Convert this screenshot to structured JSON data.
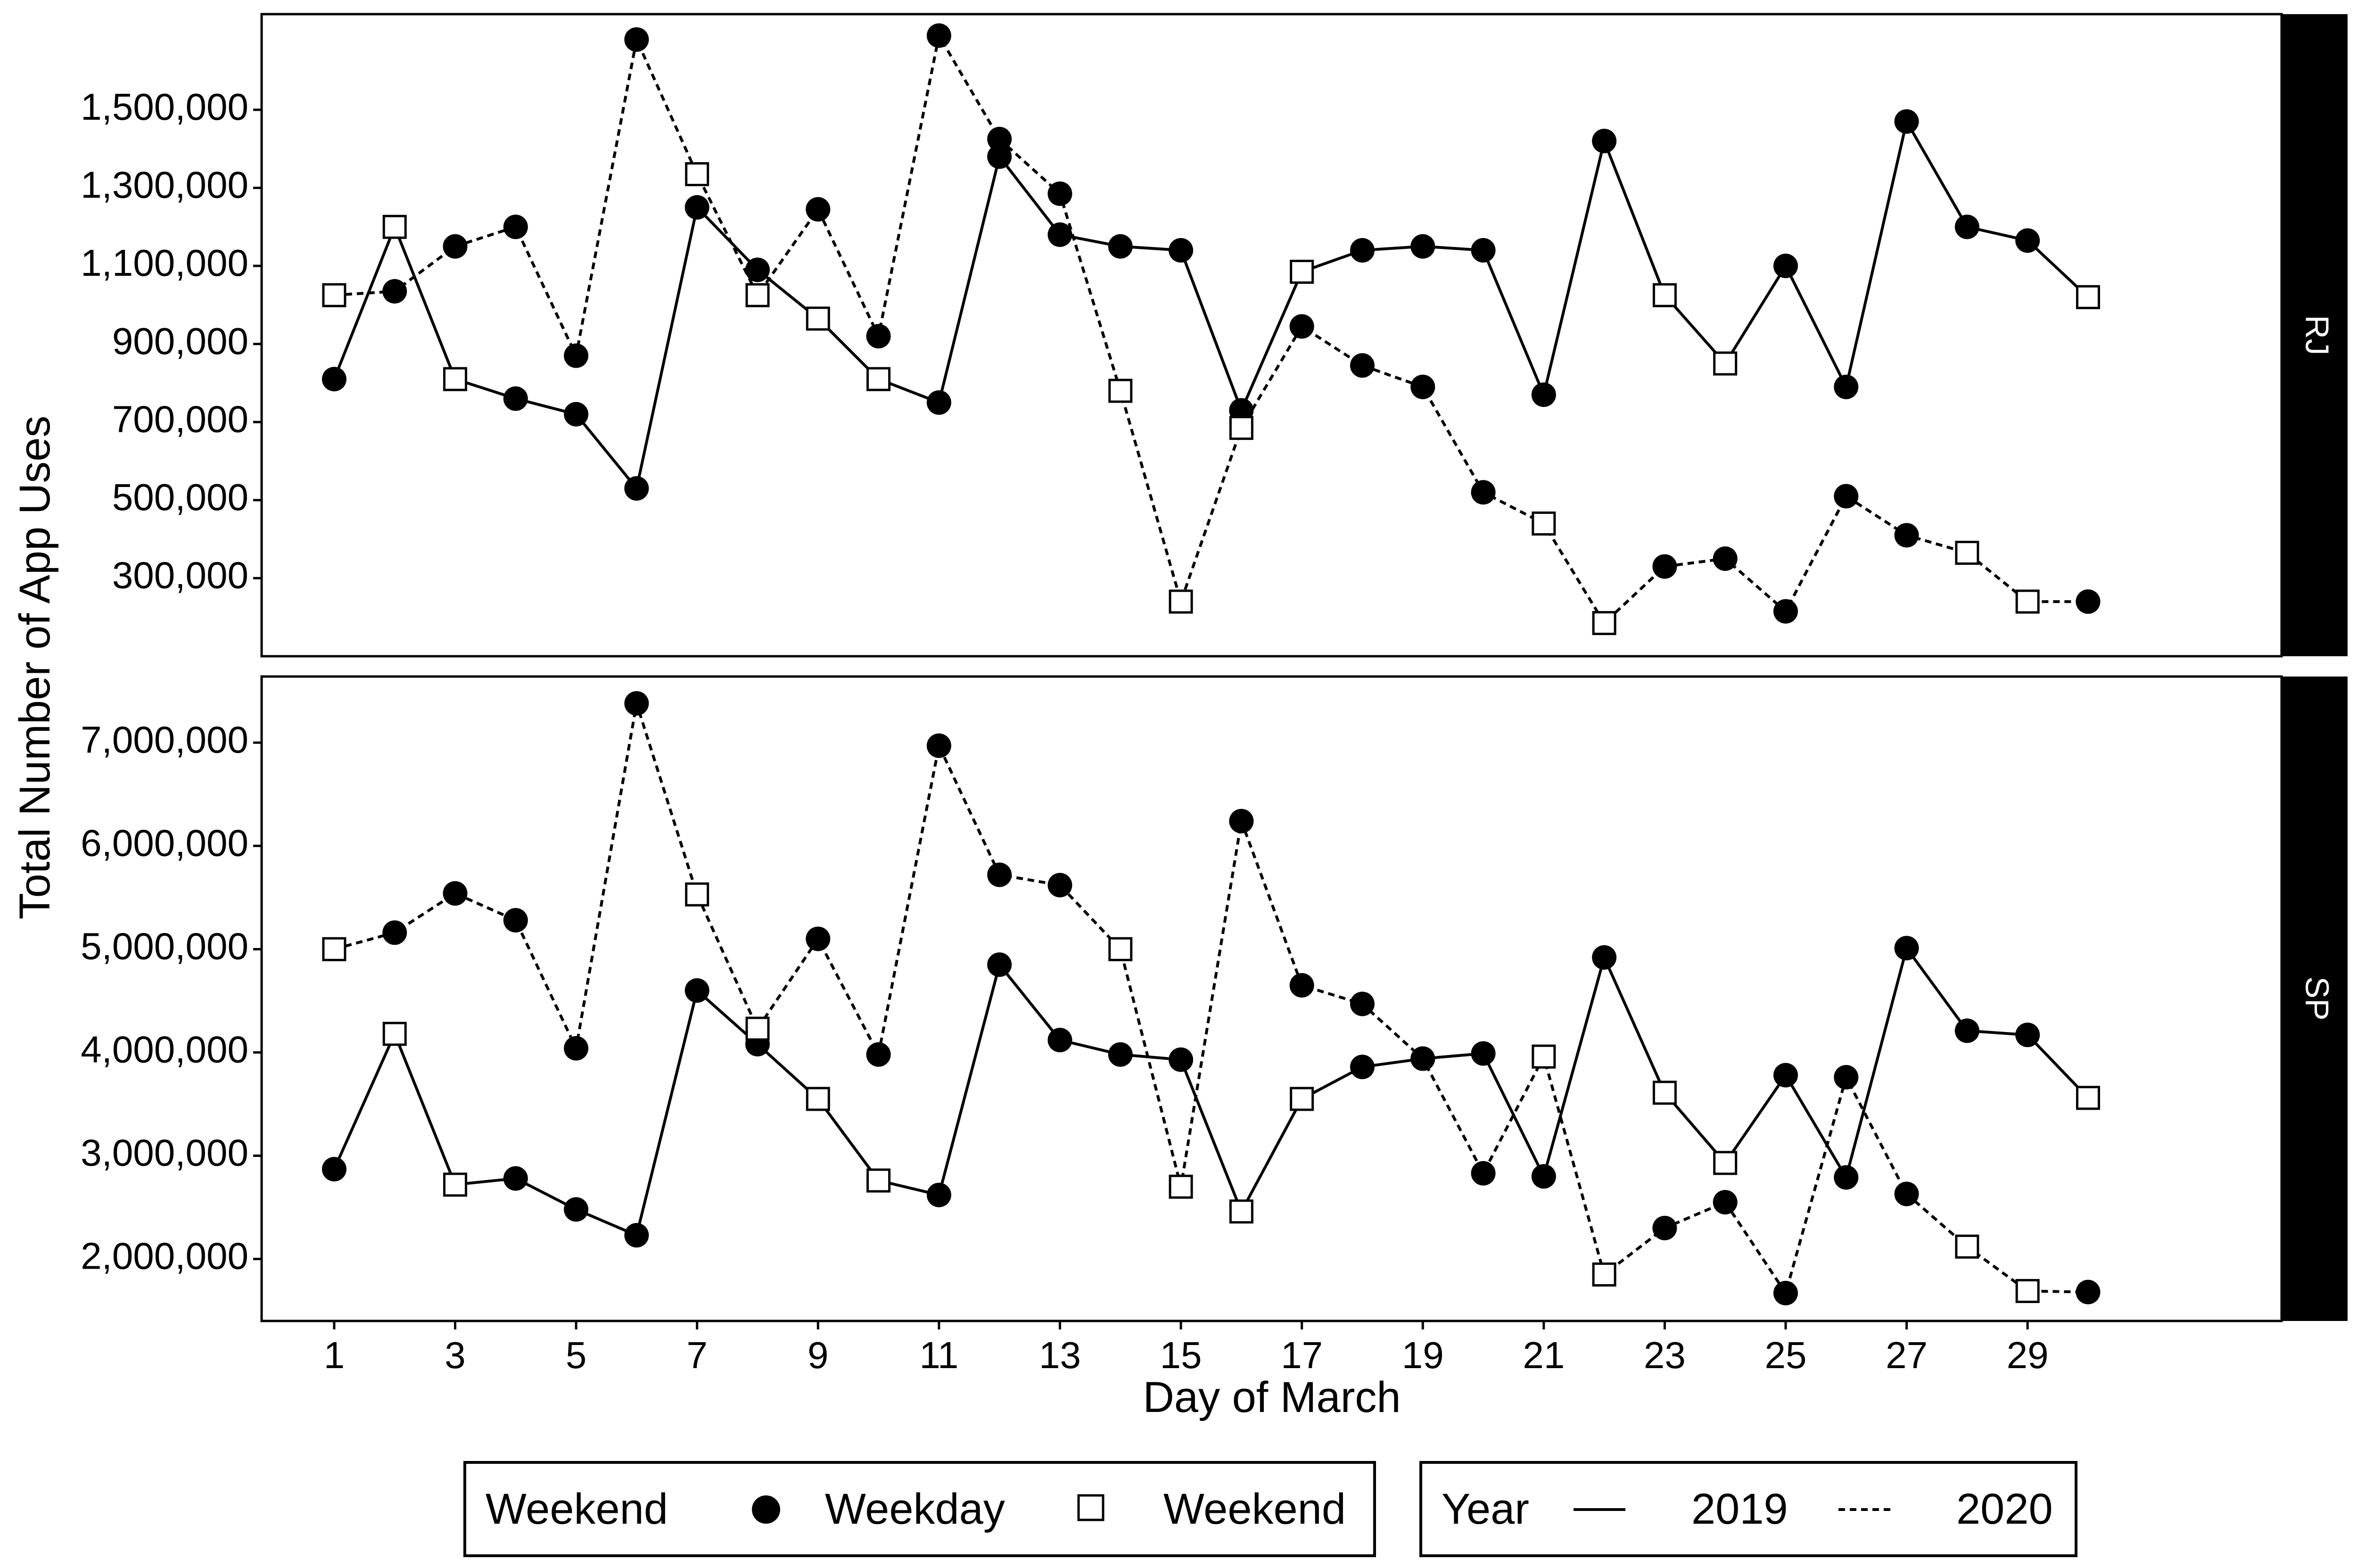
{
  "chart_data": {
    "type": "line",
    "xlabel": "Day of March",
    "ylabel": "Total Number of App Uses",
    "x_ticks": [
      1,
      3,
      5,
      7,
      9,
      11,
      13,
      15,
      17,
      19,
      21,
      23,
      25,
      27,
      29
    ],
    "x_range": [
      -0.2,
      33.2
    ],
    "x": [
      1,
      2,
      3,
      4,
      5,
      6,
      7,
      8,
      9,
      10,
      11,
      12,
      13,
      14,
      15,
      16,
      17,
      18,
      19,
      20,
      21,
      22,
      23,
      24,
      25,
      26,
      27,
      28,
      29,
      30
    ],
    "weekend_label": "Weekend",
    "panels": [
      {
        "strip": "RJ",
        "ylim": [
          100000,
          1745000
        ],
        "y_ticks": [
          300000,
          500000,
          700000,
          900000,
          1100000,
          1300000,
          1500000
        ],
        "y_tick_labels": [
          "300,000",
          "500,000",
          "700,000",
          "900,000",
          "1,100,000",
          "1,300,000",
          "1,500,000"
        ],
        "series": [
          {
            "name": "2019",
            "values": [
              810000,
              1200000,
              810000,
              760000,
              720000,
              530000,
              1250000,
              1090000,
              965000,
              810000,
              750000,
              1380000,
              1180000,
              1150000,
              1140000,
              730000,
              1085000,
              1140000,
              1150000,
              1140000,
              770000,
              1420000,
              1025000,
              850000,
              1100000,
              790000,
              1470000,
              1200000,
              1165000,
              1020000
            ],
            "weekend": [
              false,
              true,
              true,
              false,
              false,
              false,
              false,
              false,
              true,
              true,
              false,
              false,
              false,
              false,
              false,
              false,
              true,
              false,
              false,
              false,
              false,
              false,
              true,
              true,
              false,
              false,
              false,
              false,
              false,
              true
            ]
          },
          {
            "name": "2020",
            "values": [
              1025000,
              1035000,
              1150000,
              1200000,
              870000,
              1680000,
              1335000,
              1025000,
              1245000,
              920000,
              1690000,
              1425000,
              1285000,
              780000,
              240000,
              685000,
              945000,
              845000,
              790000,
              520000,
              440000,
              185000,
              330000,
              350000,
              215000,
              510000,
              410000,
              365000,
              240000,
              240000
            ],
            "weekend": [
              true,
              false,
              false,
              false,
              false,
              false,
              true,
              true,
              false,
              false,
              false,
              false,
              false,
              true,
              true,
              true,
              false,
              false,
              false,
              false,
              true,
              true,
              false,
              false,
              false,
              false,
              false,
              true,
              true,
              false
            ]
          }
        ]
      },
      {
        "strip": "SP",
        "ylim": [
          1400000,
          7640000
        ],
        "y_ticks": [
          2000000,
          3000000,
          4000000,
          5000000,
          6000000,
          7000000
        ],
        "y_tick_labels": [
          "2,000,000",
          "3,000,000",
          "4,000,000",
          "5,000,000",
          "6,000,000",
          "7,000,000"
        ],
        "series": [
          {
            "name": "2019",
            "values": [
              2870000,
              4180000,
              2720000,
              2780000,
              2480000,
              2230000,
              4600000,
              4080000,
              3550000,
              2760000,
              2620000,
              4850000,
              4120000,
              3980000,
              3930000,
              2460000,
              3550000,
              3860000,
              3940000,
              3990000,
              2800000,
              4920000,
              3610000,
              2930000,
              3780000,
              2790000,
              5010000,
              4210000,
              4170000,
              3560000
            ],
            "weekend": [
              false,
              true,
              true,
              false,
              false,
              false,
              false,
              false,
              true,
              true,
              false,
              false,
              false,
              false,
              false,
              true,
              true,
              false,
              false,
              false,
              false,
              false,
              true,
              true,
              false,
              false,
              false,
              false,
              false,
              true
            ]
          },
          {
            "name": "2020",
            "values": [
              5000000,
              5160000,
              5540000,
              5280000,
              4040000,
              7380000,
              5530000,
              4230000,
              5100000,
              3980000,
              6970000,
              5720000,
              5620000,
              5000000,
              2700000,
              6240000,
              4650000,
              4470000,
              3940000,
              2830000,
              3960000,
              1850000,
              2300000,
              2550000,
              1670000,
              3760000,
              2630000,
              2120000,
              1690000,
              1680000
            ],
            "weekend": [
              true,
              false,
              false,
              false,
              false,
              false,
              true,
              true,
              false,
              false,
              false,
              false,
              false,
              true,
              true,
              false,
              false,
              false,
              false,
              false,
              true,
              true,
              false,
              false,
              false,
              false,
              false,
              true,
              true,
              false
            ]
          }
        ]
      }
    ],
    "legend": {
      "placement": "bottom",
      "shape": {
        "title": "Weekend",
        "items": [
          {
            "marker": "filled-circle",
            "label": "Weekday"
          },
          {
            "marker": "open-square",
            "label": "Weekend"
          }
        ]
      },
      "linetype": {
        "title": "Year",
        "items": [
          {
            "style": "solid",
            "label": "2019"
          },
          {
            "style": "dashed",
            "label": "2020"
          }
        ]
      }
    }
  }
}
